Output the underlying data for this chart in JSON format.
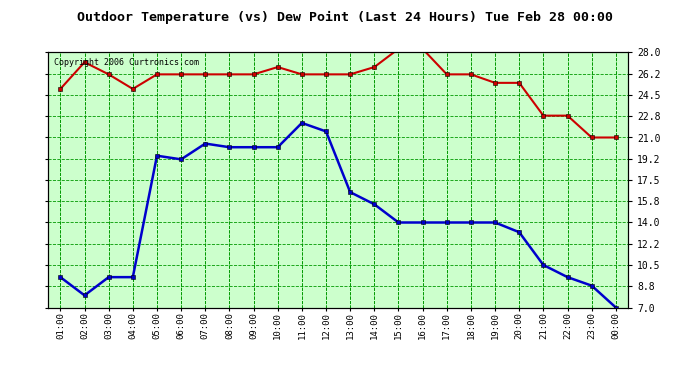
{
  "title": "Outdoor Temperature (vs) Dew Point (Last 24 Hours) Tue Feb 28 00:00",
  "copyright": "Copyright 2006 Curtronics.com",
  "x_labels": [
    "01:00",
    "02:00",
    "03:00",
    "04:00",
    "05:00",
    "06:00",
    "07:00",
    "08:00",
    "09:00",
    "10:00",
    "11:00",
    "12:00",
    "13:00",
    "14:00",
    "15:00",
    "16:00",
    "17:00",
    "18:00",
    "19:00",
    "20:00",
    "21:00",
    "22:00",
    "23:00",
    "00:00"
  ],
  "y_ticks": [
    7.0,
    8.8,
    10.5,
    12.2,
    14.0,
    15.8,
    17.5,
    19.2,
    21.0,
    22.8,
    24.5,
    26.2,
    28.0
  ],
  "ylim": [
    7.0,
    28.0
  ],
  "temp_color": "#cc0000",
  "dew_color": "#0000cc",
  "bg_color": "#ccffcc",
  "grid_color": "#009900",
  "outer_bg": "#ffffff",
  "temp_values": [
    25.0,
    27.2,
    26.2,
    25.0,
    26.2,
    26.2,
    26.2,
    26.2,
    26.2,
    26.8,
    26.2,
    26.2,
    26.2,
    26.8,
    28.3,
    28.3,
    26.2,
    26.2,
    25.5,
    25.5,
    22.8,
    22.8,
    21.0,
    21.0
  ],
  "dew_values": [
    9.5,
    8.0,
    9.5,
    9.5,
    19.5,
    19.2,
    20.5,
    20.2,
    20.2,
    20.2,
    22.2,
    21.5,
    16.5,
    15.5,
    14.0,
    14.0,
    14.0,
    14.0,
    14.0,
    13.2,
    10.5,
    9.5,
    8.8,
    7.0
  ]
}
